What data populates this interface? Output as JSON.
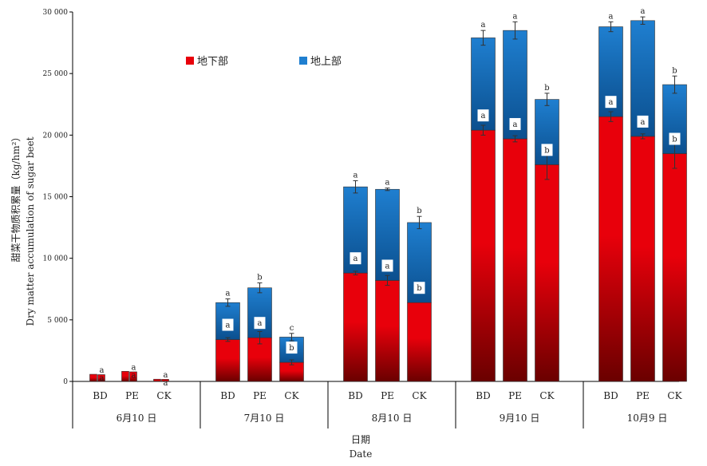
{
  "chart_data": {
    "type": "bar",
    "stacked": true,
    "ylabel": [
      "甜菜干物质积累量（kg/hm²）",
      "Dry matter accumulation of sugar beet"
    ],
    "xlabel": [
      "日期",
      "Date"
    ],
    "ylim": [
      0,
      30000
    ],
    "yticks": [
      0,
      5000,
      10000,
      15000,
      20000,
      25000,
      30000
    ],
    "ytick_labels": [
      "0",
      "5 000",
      "10 000",
      "15 000",
      "20 000",
      "25 000",
      "30 000"
    ],
    "treatments": [
      "BD",
      "PE",
      "CK"
    ],
    "groups": [
      "6月10 日",
      "7月10 日",
      "8月10 日",
      "9月10 日",
      "10月9 日"
    ],
    "legend_position": "top-left",
    "colors": {
      "below": "#e8000b",
      "above": "#1f7fd0"
    },
    "series": [
      {
        "name": "地下部",
        "values": [
          [
            580,
            820,
            180
          ],
          [
            3400,
            3550,
            1550
          ],
          [
            8800,
            8200,
            6400
          ],
          [
            20400,
            19700,
            17600
          ],
          [
            21500,
            19900,
            18500
          ]
        ],
        "errors": [
          [
            0,
            0,
            0
          ],
          [
            150,
            500,
            200
          ],
          [
            150,
            400,
            0
          ],
          [
            400,
            250,
            1200
          ],
          [
            400,
            200,
            1200
          ]
        ],
        "sig": [
          [
            "a",
            "a",
            "a"
          ],
          [
            "a",
            "a",
            "b"
          ],
          [
            "a",
            "a",
            "b"
          ],
          [
            "a",
            "a",
            "b"
          ],
          [
            "a",
            "a",
            "b"
          ]
        ]
      },
      {
        "name": "地上部",
        "values": [
          [
            0,
            0,
            0
          ],
          [
            3000,
            4050,
            2050
          ],
          [
            7000,
            7400,
            6500
          ],
          [
            7500,
            8800,
            5300
          ],
          [
            7300,
            9400,
            5600
          ]
        ],
        "errors": [
          [
            0,
            0,
            0
          ],
          [
            300,
            400,
            300
          ],
          [
            500,
            100,
            500
          ],
          [
            600,
            700,
            500
          ],
          [
            400,
            300,
            700
          ]
        ],
        "sig": [
          [
            "a",
            "a",
            "a"
          ],
          [
            "a",
            "b",
            "c"
          ],
          [
            "a",
            "a",
            "b"
          ],
          [
            "a",
            "a",
            "b"
          ],
          [
            "a",
            "a",
            "b"
          ]
        ]
      }
    ]
  }
}
